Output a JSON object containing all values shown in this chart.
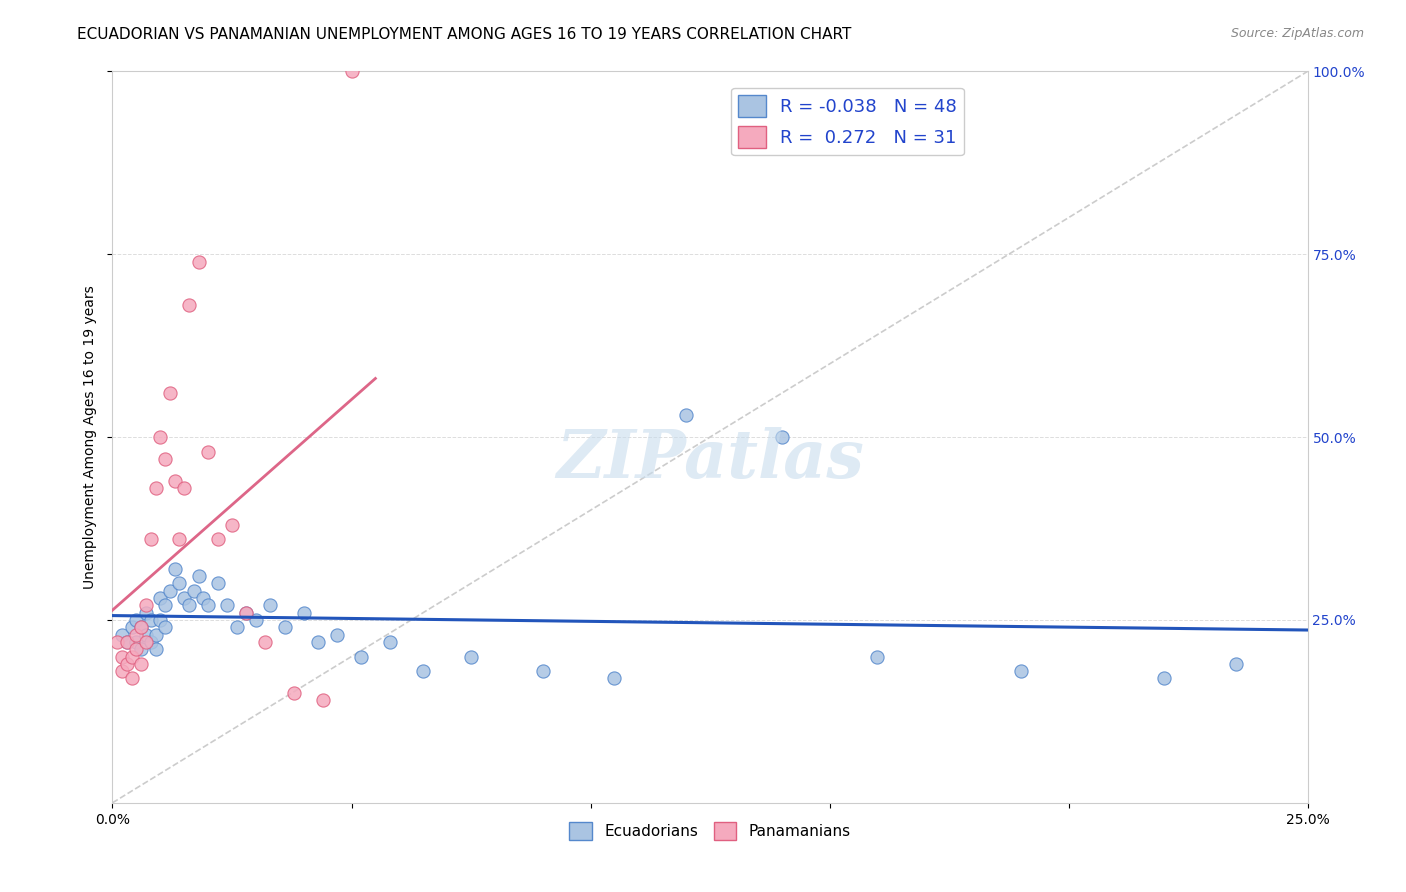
{
  "title": "ECUADORIAN VS PANAMANIAN UNEMPLOYMENT AMONG AGES 16 TO 19 YEARS CORRELATION CHART",
  "source": "Source: ZipAtlas.com",
  "ylabel": "Unemployment Among Ages 16 to 19 years",
  "xlim": [
    0.0,
    0.25
  ],
  "ylim": [
    0.0,
    1.0
  ],
  "ecuadorian_color": "#aac4e2",
  "panamanian_color": "#f5aabe",
  "ecuadorian_edge_color": "#5588cc",
  "panamanian_edge_color": "#e06080",
  "trendline_ec_color": "#2255bb",
  "trendline_pa_color": "#dd6688",
  "diagonal_line_color": "#cccccc",
  "legend_text_color": "#2244cc",
  "watermark": "ZIPatlas",
  "R_ec": -0.038,
  "N_ec": 48,
  "R_pa": 0.272,
  "N_pa": 31,
  "ecuadorian_x": [
    0.002,
    0.003,
    0.004,
    0.005,
    0.005,
    0.006,
    0.006,
    0.007,
    0.007,
    0.008,
    0.008,
    0.009,
    0.009,
    0.01,
    0.01,
    0.011,
    0.011,
    0.012,
    0.013,
    0.014,
    0.015,
    0.016,
    0.017,
    0.018,
    0.019,
    0.02,
    0.022,
    0.024,
    0.026,
    0.028,
    0.03,
    0.033,
    0.036,
    0.04,
    0.043,
    0.047,
    0.052,
    0.058,
    0.065,
    0.075,
    0.09,
    0.105,
    0.12,
    0.14,
    0.16,
    0.19,
    0.22,
    0.235
  ],
  "ecuadorian_y": [
    0.23,
    0.22,
    0.24,
    0.22,
    0.25,
    0.21,
    0.24,
    0.23,
    0.26,
    0.22,
    0.25,
    0.23,
    0.21,
    0.25,
    0.28,
    0.27,
    0.24,
    0.29,
    0.32,
    0.3,
    0.28,
    0.27,
    0.29,
    0.31,
    0.28,
    0.27,
    0.3,
    0.27,
    0.24,
    0.26,
    0.25,
    0.27,
    0.24,
    0.26,
    0.22,
    0.23,
    0.2,
    0.22,
    0.18,
    0.2,
    0.18,
    0.17,
    0.53,
    0.5,
    0.2,
    0.18,
    0.17,
    0.19
  ],
  "panamanian_x": [
    0.001,
    0.002,
    0.002,
    0.003,
    0.003,
    0.004,
    0.004,
    0.005,
    0.005,
    0.006,
    0.006,
    0.007,
    0.007,
    0.008,
    0.009,
    0.01,
    0.011,
    0.012,
    0.013,
    0.014,
    0.015,
    0.016,
    0.018,
    0.02,
    0.022,
    0.025,
    0.028,
    0.032,
    0.038,
    0.044,
    0.05
  ],
  "panamanian_y": [
    0.22,
    0.2,
    0.18,
    0.22,
    0.19,
    0.2,
    0.17,
    0.23,
    0.21,
    0.19,
    0.24,
    0.27,
    0.22,
    0.36,
    0.43,
    0.5,
    0.47,
    0.56,
    0.44,
    0.36,
    0.43,
    0.68,
    0.74,
    0.48,
    0.36,
    0.38,
    0.26,
    0.22,
    0.15,
    0.14,
    1.0
  ],
  "bg_color": "#ffffff",
  "grid_color": "#dddddd",
  "title_fontsize": 11,
  "label_fontsize": 10,
  "tick_fontsize": 10,
  "marker_size": 90
}
